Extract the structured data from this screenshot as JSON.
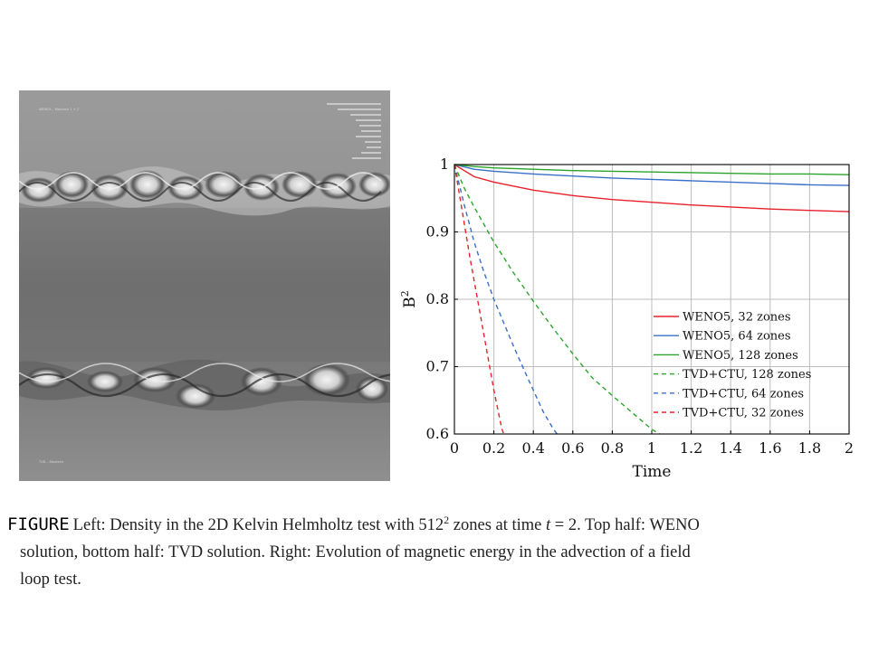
{
  "figure_panel": {
    "tiny_labels": [
      "WENO5 – Montech 1 + 2",
      "TVD – Montech"
    ]
  },
  "caption": {
    "label": "FIGURE",
    "line1_before_sup": "Left: Density in the 2D Kelvin Helmholtz test with 512",
    "line1_sup": "2",
    "line1_mid": " zones at time ",
    "line1_var": "t",
    "line1_end": " = 2. Top half: WENO",
    "line2": "solution, bottom half: TVD solution. Right: Evolution of magnetic energy in the advection of a field",
    "line3": "loop test."
  },
  "chart_data": {
    "type": "line",
    "xlabel": "Time",
    "ylabel": "B",
    "ylabel_sup": "2",
    "xlim": [
      0,
      2
    ],
    "ylim": [
      0.6,
      1
    ],
    "xticks": [
      0,
      0.2,
      0.4,
      0.6,
      0.8,
      1,
      1.2,
      1.4,
      1.6,
      1.8,
      2
    ],
    "xtick_labels": [
      "0",
      "0.2",
      "0.4",
      "0.6",
      "0.8",
      "1",
      "1.2",
      "1.4",
      "1.6",
      "1.8",
      "2"
    ],
    "yticks": [
      0.6,
      0.7,
      0.8,
      0.9,
      1
    ],
    "ytick_labels": [
      "0.6",
      "0.7",
      "0.8",
      "0.9",
      "1"
    ],
    "grid": true,
    "legend_position": "bottom-right",
    "series": [
      {
        "name": "WENO5, 32 zones",
        "color": "#e8202a",
        "dash": "solid",
        "x": [
          0,
          0.1,
          0.2,
          0.4,
          0.6,
          0.8,
          1.0,
          1.2,
          1.4,
          1.6,
          1.8,
          2.0
        ],
        "y": [
          1.0,
          0.982,
          0.974,
          0.962,
          0.954,
          0.948,
          0.944,
          0.94,
          0.937,
          0.934,
          0.932,
          0.93
        ]
      },
      {
        "name": "WENO5, 64 zones",
        "color": "#3a6fc9",
        "dash": "solid",
        "x": [
          0,
          0.1,
          0.2,
          0.4,
          0.6,
          0.8,
          1.0,
          1.2,
          1.4,
          1.6,
          1.8,
          2.0
        ],
        "y": [
          1.0,
          0.993,
          0.99,
          0.986,
          0.983,
          0.98,
          0.978,
          0.976,
          0.974,
          0.972,
          0.97,
          0.969
        ]
      },
      {
        "name": "WENO5, 128 zones",
        "color": "#2aa52a",
        "dash": "solid",
        "x": [
          0,
          0.1,
          0.2,
          0.4,
          0.6,
          0.8,
          1.0,
          1.2,
          1.4,
          1.6,
          1.8,
          2.0
        ],
        "y": [
          1.0,
          0.997,
          0.995,
          0.993,
          0.991,
          0.99,
          0.989,
          0.988,
          0.987,
          0.986,
          0.986,
          0.985
        ]
      },
      {
        "name": "TVD+CTU, 128 zones",
        "color": "#2aa52a",
        "dash": "dashed",
        "x": [
          0,
          0.05,
          0.1,
          0.2,
          0.3,
          0.4,
          0.5,
          0.6,
          0.7,
          0.8,
          0.9,
          1.0,
          1.04
        ],
        "y": [
          1.0,
          0.965,
          0.937,
          0.885,
          0.839,
          0.797,
          0.757,
          0.719,
          0.683,
          0.657,
          0.632,
          0.607,
          0.6
        ]
      },
      {
        "name": "TVD+CTU, 64 zones",
        "color": "#3a6fc9",
        "dash": "dashed",
        "x": [
          0,
          0.05,
          0.1,
          0.15,
          0.2,
          0.25,
          0.3,
          0.35,
          0.4,
          0.45,
          0.5,
          0.52
        ],
        "y": [
          1.0,
          0.94,
          0.885,
          0.84,
          0.8,
          0.765,
          0.73,
          0.697,
          0.665,
          0.633,
          0.608,
          0.6
        ]
      },
      {
        "name": "TVD+CTU, 32 zones",
        "color": "#e8202a",
        "dash": "dashed",
        "x": [
          0,
          0.04,
          0.08,
          0.12,
          0.16,
          0.2,
          0.24,
          0.25
        ],
        "y": [
          1.0,
          0.93,
          0.86,
          0.795,
          0.73,
          0.665,
          0.608,
          0.6
        ]
      }
    ]
  }
}
